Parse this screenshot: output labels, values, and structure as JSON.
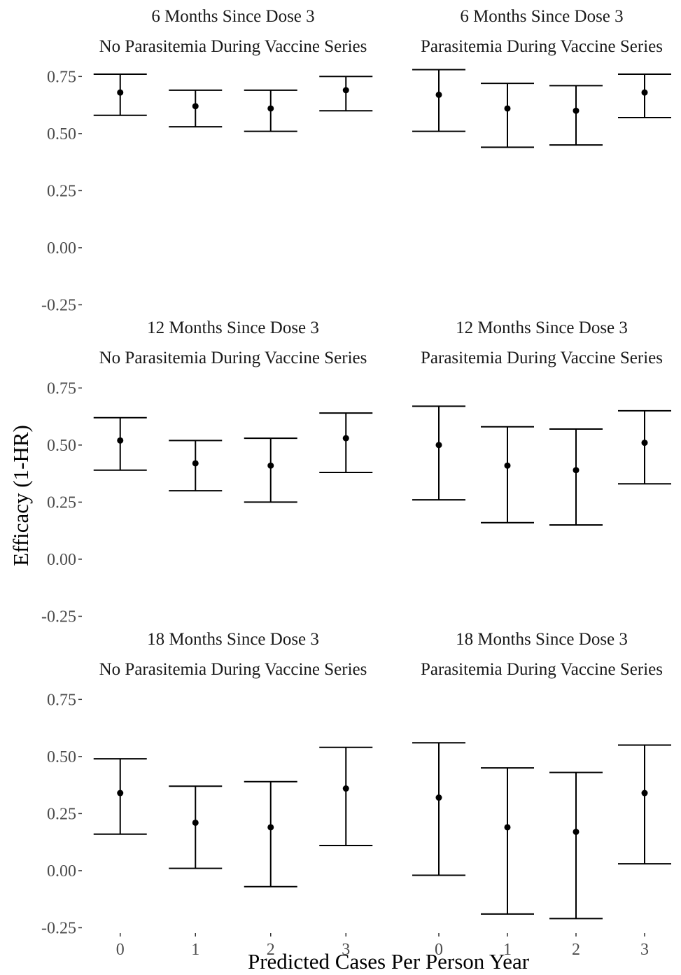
{
  "chart_data": {
    "type": "errorbar-facets",
    "xlabel": "Predicted Cases Per Person Year",
    "ylabel": "Efficacy (1-HR)",
    "x_categories": [
      "0",
      "1",
      "2",
      "3"
    ],
    "ylim": [
      -0.27,
      0.8
    ],
    "y_ticks": [
      0.75,
      0.5,
      0.25,
      0.0,
      -0.25
    ],
    "y_tick_labels": [
      "0.75",
      "0.50",
      "0.25",
      "0.00",
      "-0.25"
    ],
    "grid": false,
    "facets": [
      {
        "strip1": "6 Months Since Dose 3",
        "strip2": "No Parasitemia During Vaccine Series",
        "points": [
          {
            "x": "0",
            "est": 0.68,
            "lo": 0.58,
            "hi": 0.76
          },
          {
            "x": "1",
            "est": 0.62,
            "lo": 0.53,
            "hi": 0.69
          },
          {
            "x": "2",
            "est": 0.61,
            "lo": 0.51,
            "hi": 0.69
          },
          {
            "x": "3",
            "est": 0.69,
            "lo": 0.6,
            "hi": 0.75
          }
        ]
      },
      {
        "strip1": "6 Months Since Dose 3",
        "strip2": "Parasitemia During Vaccine Series",
        "points": [
          {
            "x": "0",
            "est": 0.67,
            "lo": 0.51,
            "hi": 0.78
          },
          {
            "x": "1",
            "est": 0.61,
            "lo": 0.44,
            "hi": 0.72
          },
          {
            "x": "2",
            "est": 0.6,
            "lo": 0.45,
            "hi": 0.71
          },
          {
            "x": "3",
            "est": 0.68,
            "lo": 0.57,
            "hi": 0.76
          }
        ]
      },
      {
        "strip1": "12 Months Since Dose 3",
        "strip2": "No Parasitemia During Vaccine Series",
        "points": [
          {
            "x": "0",
            "est": 0.52,
            "lo": 0.39,
            "hi": 0.62
          },
          {
            "x": "1",
            "est": 0.42,
            "lo": 0.3,
            "hi": 0.52
          },
          {
            "x": "2",
            "est": 0.41,
            "lo": 0.25,
            "hi": 0.53
          },
          {
            "x": "3",
            "est": 0.53,
            "lo": 0.38,
            "hi": 0.64
          }
        ]
      },
      {
        "strip1": "12 Months Since Dose 3",
        "strip2": "Parasitemia During Vaccine Series",
        "points": [
          {
            "x": "0",
            "est": 0.5,
            "lo": 0.26,
            "hi": 0.67
          },
          {
            "x": "1",
            "est": 0.41,
            "lo": 0.16,
            "hi": 0.58
          },
          {
            "x": "2",
            "est": 0.39,
            "lo": 0.15,
            "hi": 0.57
          },
          {
            "x": "3",
            "est": 0.51,
            "lo": 0.33,
            "hi": 0.65
          }
        ]
      },
      {
        "strip1": "18 Months Since Dose 3",
        "strip2": "No Parasitemia During Vaccine Series",
        "points": [
          {
            "x": "0",
            "est": 0.34,
            "lo": 0.16,
            "hi": 0.49
          },
          {
            "x": "1",
            "est": 0.21,
            "lo": 0.01,
            "hi": 0.37
          },
          {
            "x": "2",
            "est": 0.19,
            "lo": -0.07,
            "hi": 0.39
          },
          {
            "x": "3",
            "est": 0.36,
            "lo": 0.11,
            "hi": 0.54
          }
        ]
      },
      {
        "strip1": "18 Months Since Dose 3",
        "strip2": "Parasitemia During Vaccine Series",
        "points": [
          {
            "x": "0",
            "est": 0.32,
            "lo": -0.02,
            "hi": 0.56
          },
          {
            "x": "1",
            "est": 0.19,
            "lo": -0.19,
            "hi": 0.45
          },
          {
            "x": "2",
            "est": 0.17,
            "lo": -0.21,
            "hi": 0.43
          },
          {
            "x": "3",
            "est": 0.34,
            "lo": 0.03,
            "hi": 0.55
          }
        ]
      }
    ]
  }
}
